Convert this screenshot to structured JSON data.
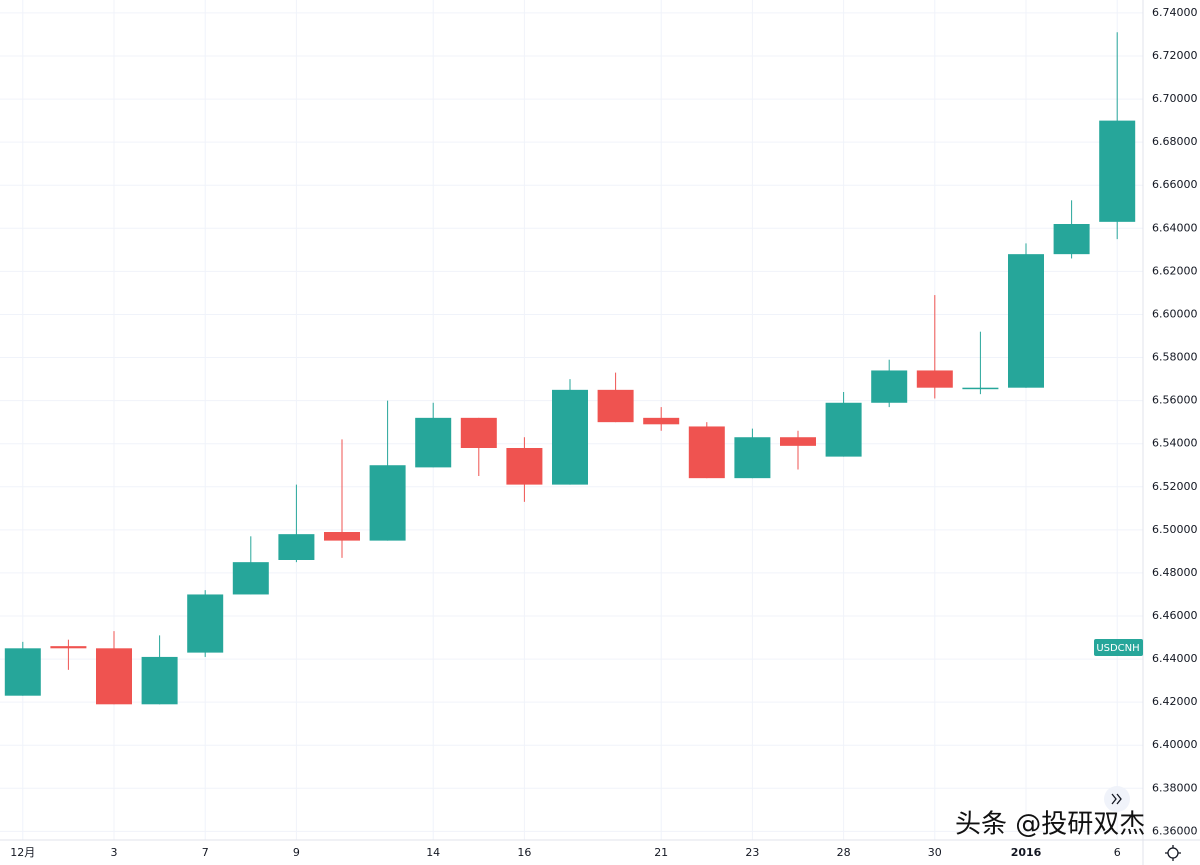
{
  "chart_data": {
    "type": "candlestick",
    "categories": [
      "12月",
      null,
      "3",
      null,
      "7",
      null,
      "9",
      null,
      null,
      "14",
      null,
      "16",
      null,
      null,
      "21",
      null,
      "23",
      null,
      "28",
      null,
      "30",
      null,
      "2016",
      null,
      "6"
    ],
    "series": [
      {
        "name": "USDCNH",
        "open": [
          6.423,
          6.446,
          6.445,
          6.419,
          6.443,
          6.47,
          6.486,
          6.499,
          6.495,
          6.529,
          6.552,
          6.538,
          6.521,
          6.565,
          6.552,
          6.548,
          6.524,
          6.543,
          6.534,
          6.559,
          6.574,
          6.566,
          6.566,
          6.628,
          6.643
        ],
        "high": [
          6.448,
          6.449,
          6.453,
          6.451,
          6.472,
          6.497,
          6.521,
          6.542,
          6.56,
          6.559,
          6.552,
          6.543,
          6.57,
          6.573,
          6.557,
          6.55,
          6.547,
          6.546,
          6.564,
          6.579,
          6.609,
          6.592,
          6.633,
          6.653,
          6.731
        ],
        "low": [
          6.423,
          6.435,
          6.419,
          6.419,
          6.441,
          6.47,
          6.485,
          6.487,
          6.495,
          6.529,
          6.525,
          6.513,
          6.521,
          6.55,
          6.546,
          6.524,
          6.524,
          6.528,
          6.534,
          6.557,
          6.561,
          6.563,
          6.566,
          6.626,
          6.635
        ],
        "close": [
          6.445,
          6.445,
          6.419,
          6.441,
          6.47,
          6.485,
          6.498,
          6.495,
          6.53,
          6.552,
          6.538,
          6.521,
          6.565,
          6.55,
          6.549,
          6.524,
          6.543,
          6.539,
          6.559,
          6.574,
          6.566,
          6.566,
          6.628,
          6.642,
          6.69
        ]
      }
    ],
    "up_color": "#26a69a",
    "down_color": "#ef5350",
    "ylim": [
      6.356,
      6.746
    ],
    "yticks": [
      {
        "value": 6.36,
        "label": "6.36000"
      },
      {
        "value": 6.38,
        "label": "6.38000"
      },
      {
        "value": 6.4,
        "label": "6.40000"
      },
      {
        "value": 6.42,
        "label": "6.42000"
      },
      {
        "value": 6.44,
        "label": "6.44000"
      },
      {
        "value": 6.46,
        "label": "6.46000"
      },
      {
        "value": 6.48,
        "label": "6.48000"
      },
      {
        "value": 6.5,
        "label": "6.50000"
      },
      {
        "value": 6.52,
        "label": "6.52000"
      },
      {
        "value": 6.54,
        "label": "6.54000"
      },
      {
        "value": 6.56,
        "label": "6.56000"
      },
      {
        "value": 6.58,
        "label": "6.58000"
      },
      {
        "value": 6.6,
        "label": "6.60000"
      },
      {
        "value": 6.62,
        "label": "6.62000"
      },
      {
        "value": 6.64,
        "label": "6.64000"
      },
      {
        "value": 6.66,
        "label": "6.66000"
      },
      {
        "value": 6.68,
        "label": "6.68000"
      },
      {
        "value": 6.7,
        "label": "6.70000"
      },
      {
        "value": 6.72,
        "label": "6.72000"
      },
      {
        "value": 6.74,
        "label": "6.74000"
      }
    ],
    "grid": true,
    "watermark": "头条 @投研双杰"
  }
}
